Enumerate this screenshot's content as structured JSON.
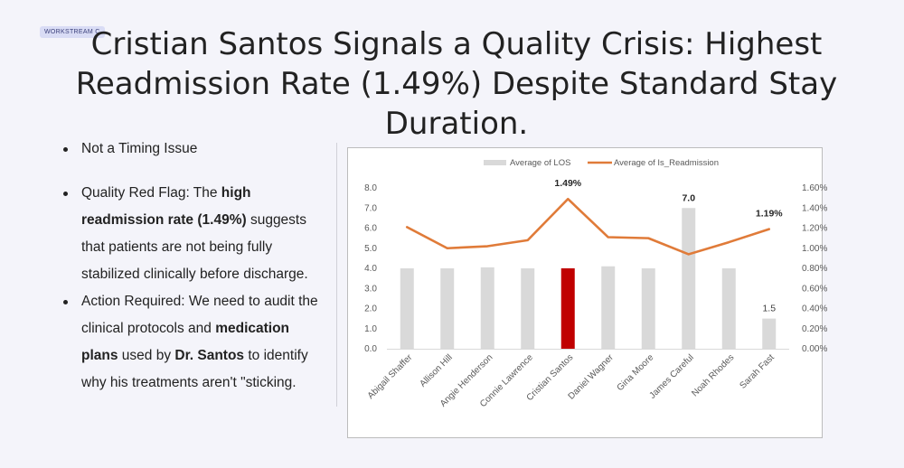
{
  "tag": "WORKSTREAM C",
  "title": "Cristian Santos Signals a Quality Crisis: Highest Readmission Rate (1.49%) Despite Standard Stay Duration.",
  "bullets": {
    "b1": "Not a Timing Issue",
    "b2": {
      "lead": "Quality Red Flag: The ",
      "bold": "high readmission rate (1.49%)",
      "rest": " suggests that patients are not being fully stabilized clinically before discharge."
    },
    "b3": {
      "lead": "Action Required: We need to audit the clinical protocols and ",
      "bold1": "medication plans",
      "mid": " used by ",
      "bold2": "Dr. Santos",
      "rest": " to identify why his treatments aren't \"sticking."
    }
  },
  "chart_data": {
    "type": "bar",
    "categories": [
      "Abigail Shaffer",
      "Allison Hill",
      "Angie Henderson",
      "Connie Lawrence",
      "Cristian Santos",
      "Daniel Wagner",
      "Gina Moore",
      "James Careful",
      "Noah Rhodes",
      "Sarah Fast"
    ],
    "series": [
      {
        "name": "Average of LOS",
        "type": "bar",
        "axis": "left",
        "values": [
          4.0,
          4.0,
          4.05,
          4.0,
          4.0,
          4.1,
          4.0,
          7.0,
          4.0,
          1.5
        ],
        "color": "#d9d9d9",
        "highlight_color": "#c00000",
        "highlight_index": 4
      },
      {
        "name": "Average of Is_Readmission",
        "type": "line",
        "axis": "right",
        "values": [
          1.21,
          1.0,
          1.02,
          1.08,
          1.49,
          1.11,
          1.1,
          0.94,
          1.06,
          1.19
        ],
        "color": "#e07b39"
      }
    ],
    "ylim_left": [
      0,
      8
    ],
    "yticks_left": [
      "0.0",
      "1.0",
      "2.0",
      "3.0",
      "4.0",
      "5.0",
      "6.0",
      "7.0",
      "8.0"
    ],
    "ylim_right": [
      0,
      1.6
    ],
    "yticks_right": [
      "0.00%",
      "0.20%",
      "0.40%",
      "0.60%",
      "0.80%",
      "1.00%",
      "1.20%",
      "1.40%",
      "1.60%"
    ],
    "legend_position": "top",
    "annotations": [
      {
        "series": 1,
        "index": 4,
        "text": "1.49%",
        "bold": true
      },
      {
        "series": 1,
        "index": 9,
        "text": "1.19%",
        "bold": true
      },
      {
        "series": 0,
        "index": 7,
        "text": "7.0",
        "bold": true
      },
      {
        "series": 0,
        "index": 9,
        "text": "1.5",
        "bold": false
      }
    ]
  }
}
